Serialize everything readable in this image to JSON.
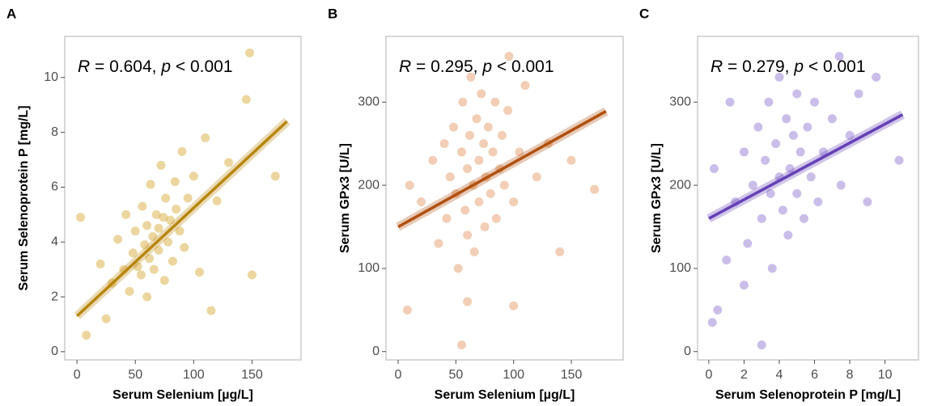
{
  "chart_data": [
    {
      "type": "scatter",
      "panel_label": "A",
      "annotation": [
        "R",
        " = 0.604, ",
        "p",
        " < 0.001"
      ],
      "xlabel": "Serum Selenium [µg/L]",
      "ylabel": "Serum Selenoprotein P [mg/L]",
      "xlim": [
        -10.5,
        192
      ],
      "ylim": [
        -0.3,
        11.5
      ],
      "xticks": [
        0,
        50,
        100,
        150
      ],
      "yticks": [
        0,
        2,
        4,
        6,
        8,
        10
      ],
      "color": "#d4a52a",
      "x": [
        20,
        30,
        35,
        40,
        42,
        45,
        48,
        50,
        52,
        55,
        56,
        58,
        60,
        60,
        62,
        63,
        65,
        66,
        68,
        70,
        70,
        72,
        74,
        75,
        76,
        78,
        80,
        82,
        84,
        85,
        88,
        90,
        92,
        95,
        100,
        105,
        110,
        120,
        130,
        145,
        148,
        8,
        3,
        25,
        115,
        170,
        150
      ],
      "y": [
        3.2,
        2.5,
        4.1,
        3.0,
        5.0,
        2.2,
        3.6,
        4.4,
        3.1,
        2.8,
        5.3,
        3.9,
        4.6,
        2.0,
        3.4,
        6.1,
        4.2,
        3.0,
        5.0,
        4.5,
        3.7,
        6.8,
        4.9,
        2.6,
        5.6,
        4.0,
        4.8,
        3.3,
        6.2,
        5.2,
        4.4,
        7.3,
        3.8,
        5.6,
        6.4,
        2.9,
        7.8,
        5.5,
        6.9,
        9.2,
        10.9,
        0.6,
        4.9,
        1.2,
        1.5,
        6.4,
        2.8
      ],
      "fit": {
        "color": "#b8860b",
        "x": [
          0,
          180
        ],
        "y": [
          1.3,
          8.4
        ]
      }
    },
    {
      "type": "scatter",
      "panel_label": "B",
      "annotation": [
        "R",
        " = 0.295, ",
        "p",
        " < 0.001"
      ],
      "xlabel": "Serum Selenium [µg/L]",
      "ylabel": "Serum GPx3 [U/L]",
      "xlim": [
        -10.5,
        194.8
      ],
      "ylim": [
        -10,
        379
      ],
      "xticks": [
        0,
        50,
        100,
        150
      ],
      "yticks": [
        0,
        100,
        200,
        300
      ],
      "color": "#e0935a",
      "x": [
        10,
        20,
        30,
        35,
        40,
        42,
        45,
        48,
        50,
        52,
        55,
        56,
        58,
        60,
        60,
        62,
        63,
        65,
        66,
        68,
        70,
        70,
        72,
        74,
        75,
        76,
        78,
        80,
        82,
        84,
        85,
        88,
        90,
        92,
        95,
        100,
        105,
        110,
        120,
        130,
        150,
        170,
        8,
        55,
        60,
        100,
        140,
        96
      ],
      "y": [
        200,
        180,
        230,
        130,
        250,
        160,
        210,
        270,
        190,
        100,
        240,
        300,
        170,
        220,
        140,
        260,
        330,
        200,
        120,
        280,
        230,
        180,
        310,
        250,
        150,
        210,
        270,
        190,
        240,
        300,
        160,
        220,
        260,
        200,
        290,
        180,
        240,
        320,
        210,
        250,
        230,
        195,
        50,
        8,
        60,
        55,
        120,
        355
      ],
      "fit": {
        "color": "#b0500f",
        "x": [
          0,
          180
        ],
        "y": [
          150,
          289
        ]
      }
    },
    {
      "type": "scatter",
      "panel_label": "C",
      "annotation": [
        "R",
        " = 0.279, ",
        "p",
        " < 0.001"
      ],
      "xlabel": "Serum Selenoprotein P [mg/L]",
      "ylabel": "Serum GPx3 [U/L]",
      "xlim": [
        -0.64,
        11.9
      ],
      "ylim": [
        -10,
        379
      ],
      "xticks": [
        0,
        2,
        4,
        6,
        8,
        10
      ],
      "yticks": [
        0,
        100,
        200,
        300
      ],
      "color": "#8a6fcf",
      "x": [
        0.3,
        0.5,
        1,
        1.5,
        2,
        2.2,
        2.5,
        2.8,
        3,
        3,
        3.2,
        3.4,
        3.5,
        3.6,
        3.8,
        4,
        4,
        4.2,
        4.4,
        4.5,
        4.6,
        4.8,
        5,
        5,
        5.2,
        5.4,
        5.6,
        5.8,
        6,
        6.2,
        6.5,
        7,
        7.5,
        8,
        8.5,
        9,
        9.5,
        10.8,
        7.4,
        1.2,
        0.2,
        2
      ],
      "y": [
        220,
        50,
        110,
        180,
        240,
        130,
        200,
        270,
        160,
        8,
        230,
        300,
        190,
        100,
        250,
        210,
        330,
        170,
        280,
        140,
        220,
        260,
        190,
        310,
        240,
        160,
        270,
        210,
        300,
        180,
        240,
        280,
        200,
        260,
        310,
        180,
        330,
        230,
        355,
        300,
        35,
        80
      ],
      "fit": {
        "color": "#6540b5",
        "x": [
          0,
          11
        ],
        "y": [
          160,
          285
        ]
      }
    }
  ]
}
